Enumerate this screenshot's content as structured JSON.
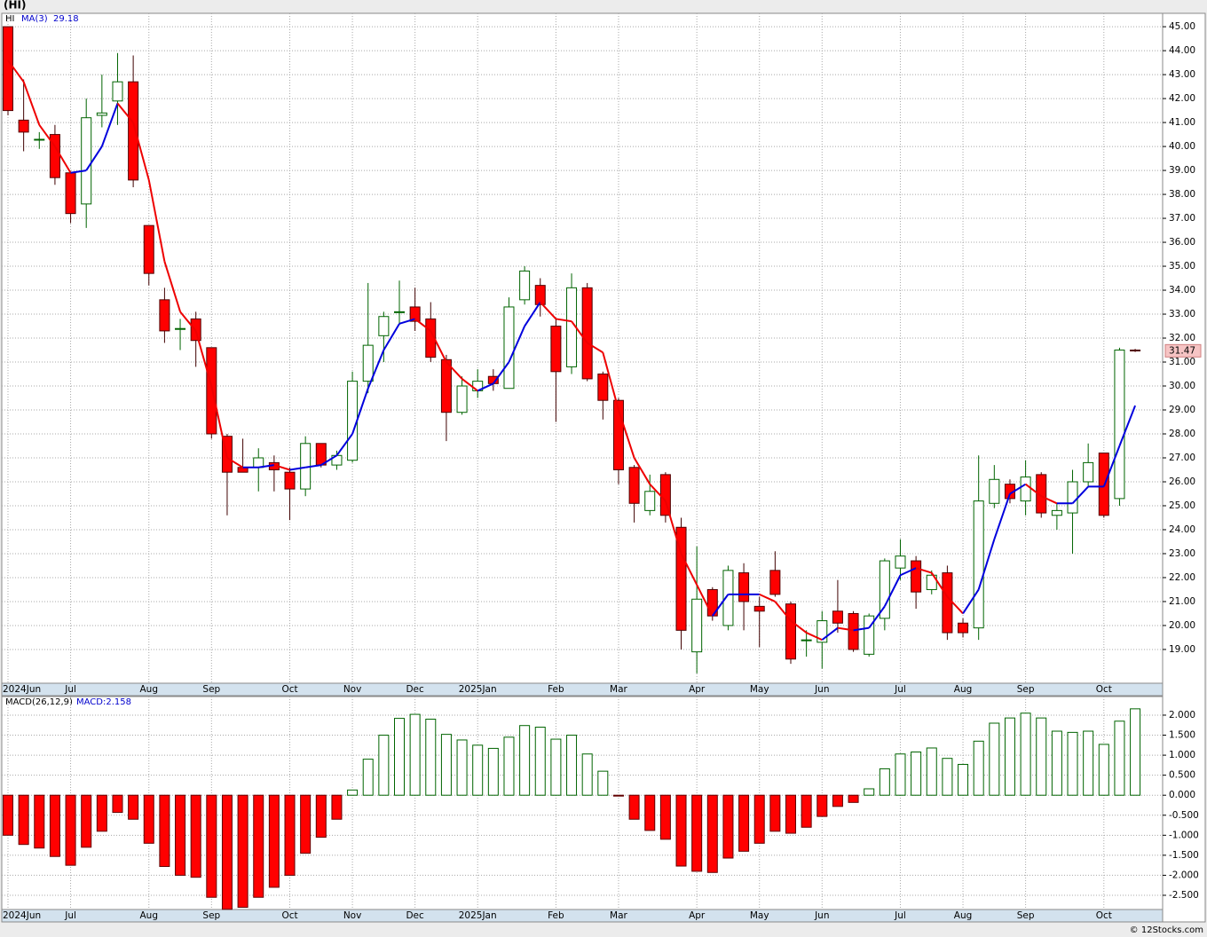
{
  "footer": "© 12Stocks.com",
  "chart_data": [
    {
      "type": "candlestick",
      "title": "(HI)",
      "name": "HI",
      "categories": [
        "2024Jun",
        null,
        null,
        null,
        "Jul",
        null,
        null,
        null,
        null,
        "Aug",
        null,
        null,
        null,
        "Sep",
        null,
        null,
        null,
        null,
        "Oct",
        null,
        null,
        null,
        "Nov",
        null,
        null,
        null,
        "Dec",
        null,
        null,
        null,
        "2025Jan",
        null,
        null,
        null,
        null,
        "Feb",
        null,
        null,
        null,
        "Mar",
        null,
        null,
        null,
        null,
        "Apr",
        null,
        null,
        null,
        "May",
        null,
        null,
        null,
        "Jun",
        null,
        null,
        null,
        null,
        "Jul",
        null,
        null,
        null,
        "Aug",
        null,
        null,
        null,
        "Sep",
        null,
        null,
        null,
        null,
        "Oct",
        null,
        null
      ],
      "open": [
        45.0,
        41.1,
        40.3,
        40.5,
        38.9,
        37.6,
        41.3,
        41.9,
        42.7,
        36.7,
        33.6,
        32.4,
        32.8,
        31.6,
        27.9,
        26.6,
        26.6,
        26.8,
        26.4,
        25.7,
        27.6,
        26.7,
        26.9,
        30.2,
        32.1,
        33.1,
        33.3,
        32.8,
        31.1,
        28.9,
        29.8,
        30.4,
        29.9,
        33.6,
        34.2,
        32.5,
        30.8,
        34.1,
        30.5,
        29.4,
        26.6,
        24.8,
        26.3,
        24.1,
        18.9,
        21.5,
        20.0,
        22.2,
        20.8,
        22.3,
        20.9,
        19.4,
        19.3,
        20.6,
        20.5,
        18.8,
        20.3,
        22.4,
        22.7,
        21.5,
        22.2,
        20.1,
        19.9,
        25.1,
        25.9,
        25.2,
        26.3,
        24.6,
        24.7,
        26.0,
        27.2,
        25.3,
        31.5
      ],
      "high": [
        45.0,
        42.8,
        40.6,
        40.9,
        38.9,
        42.0,
        43.0,
        43.9,
        43.8,
        36.7,
        34.1,
        32.8,
        33.1,
        31.6,
        28.0,
        27.8,
        27.4,
        27.1,
        26.6,
        27.9,
        27.6,
        27.3,
        30.6,
        34.3,
        33.1,
        34.4,
        34.1,
        33.5,
        31.3,
        30.4,
        30.7,
        30.7,
        33.7,
        35.0,
        34.5,
        32.8,
        34.7,
        34.3,
        30.6,
        29.5,
        26.7,
        26.3,
        26.4,
        24.5,
        23.3,
        21.6,
        22.5,
        22.6,
        21.2,
        23.1,
        21.0,
        19.8,
        20.6,
        21.9,
        20.6,
        20.5,
        22.8,
        23.6,
        22.9,
        22.3,
        22.5,
        20.3,
        27.1,
        26.7,
        26.1,
        26.9,
        26.4,
        25.1,
        26.5,
        27.6,
        27.2,
        31.6,
        31.55
      ],
      "low": [
        41.3,
        39.8,
        39.9,
        38.4,
        36.8,
        36.6,
        40.8,
        40.9,
        38.3,
        34.2,
        31.8,
        31.5,
        30.8,
        27.8,
        24.6,
        26.4,
        25.6,
        25.6,
        24.4,
        25.4,
        26.6,
        26.5,
        26.8,
        29.7,
        31.0,
        32.6,
        32.3,
        31.0,
        27.7,
        28.8,
        29.5,
        29.8,
        29.9,
        33.4,
        32.9,
        28.5,
        30.5,
        30.2,
        28.6,
        25.9,
        24.3,
        24.6,
        24.3,
        19.0,
        18.0,
        20.2,
        19.8,
        19.8,
        19.1,
        21.2,
        18.4,
        18.7,
        18.2,
        19.7,
        18.9,
        18.7,
        19.8,
        21.9,
        20.7,
        21.3,
        19.4,
        19.5,
        19.4,
        24.9,
        25.1,
        24.6,
        24.5,
        24.0,
        23.0,
        25.8,
        24.5,
        25.0,
        31.42
      ],
      "close": [
        41.5,
        40.6,
        40.3,
        38.7,
        37.2,
        41.2,
        41.4,
        42.7,
        38.6,
        34.7,
        32.3,
        32.4,
        31.9,
        28.0,
        26.4,
        26.4,
        27.0,
        26.5,
        25.7,
        27.6,
        26.7,
        27.1,
        30.2,
        31.7,
        32.9,
        33.1,
        32.7,
        31.2,
        28.9,
        30.0,
        30.2,
        30.1,
        33.3,
        34.8,
        33.4,
        30.6,
        34.1,
        30.3,
        29.4,
        26.5,
        25.1,
        25.6,
        24.6,
        19.8,
        21.1,
        20.4,
        22.3,
        21.0,
        20.6,
        21.3,
        18.6,
        19.4,
        20.2,
        20.1,
        19.0,
        20.4,
        22.7,
        22.9,
        21.4,
        22.1,
        19.7,
        19.7,
        25.2,
        26.1,
        25.3,
        26.2,
        24.7,
        24.8,
        26.0,
        26.8,
        24.6,
        31.5,
        31.47
      ],
      "up_color": "#006400",
      "down_color": "#ff0000",
      "ma": {
        "name": "MA(3)",
        "rising_color": "#0000dd",
        "falling_color": "#ee0000",
        "values": [
          43.6,
          42.7,
          40.9,
          40.0,
          38.9,
          39.0,
          40.0,
          41.8,
          41.0,
          38.6,
          35.2,
          33.1,
          32.3,
          30.0,
          27.0,
          26.6,
          26.6,
          26.7,
          26.5,
          26.6,
          26.7,
          27.1,
          28.0,
          29.9,
          31.5,
          32.6,
          32.8,
          32.3,
          31.0,
          30.3,
          29.8,
          30.1,
          31.0,
          32.5,
          33.5,
          32.8,
          32.7,
          31.8,
          31.4,
          29.0,
          27.0,
          25.9,
          25.2,
          23.0,
          21.7,
          20.4,
          21.3,
          21.3,
          21.3,
          21.0,
          20.2,
          19.7,
          19.4,
          19.9,
          19.8,
          19.9,
          20.8,
          22.1,
          22.4,
          22.2,
          21.2,
          20.5,
          21.5,
          23.6,
          25.5,
          25.9,
          25.4,
          25.1,
          25.1,
          25.8,
          25.8,
          27.5,
          29.18
        ]
      },
      "ylim": [
        17.59,
        45.56
      ],
      "yticks": [
        {
          "value": 19,
          "label": "19.00"
        },
        {
          "value": 20,
          "label": "20.00"
        },
        {
          "value": 21,
          "label": "21.00"
        },
        {
          "value": 22,
          "label": "22.00"
        },
        {
          "value": 23,
          "label": "23.00"
        },
        {
          "value": 24,
          "label": "24.00"
        },
        {
          "value": 25,
          "label": "25.00"
        },
        {
          "value": 26,
          "label": "26.00"
        },
        {
          "value": 27,
          "label": "27.00"
        },
        {
          "value": 28,
          "label": "28.00"
        },
        {
          "value": 29,
          "label": "29.00"
        },
        {
          "value": 30,
          "label": "30.00"
        },
        {
          "value": 31,
          "label": "31.00"
        },
        {
          "value": 32,
          "label": "32.00"
        },
        {
          "value": 33,
          "label": "33.00"
        },
        {
          "value": 34,
          "label": "34.00"
        },
        {
          "value": 35,
          "label": "35.00"
        },
        {
          "value": 36,
          "label": "36.00"
        },
        {
          "value": 37,
          "label": "37.00"
        },
        {
          "value": 38,
          "label": "38.00"
        },
        {
          "value": 39,
          "label": "39.00"
        },
        {
          "value": 40,
          "label": "40.00"
        },
        {
          "value": 41,
          "label": "41.00"
        },
        {
          "value": 42,
          "label": "42.00"
        },
        {
          "value": 43,
          "label": "43.00"
        },
        {
          "value": 44,
          "label": "44.00"
        },
        {
          "value": 45,
          "label": "45.00"
        }
      ],
      "grid": true
    },
    {
      "type": "bar",
      "title": "MACD(26,12,9)",
      "series": [
        {
          "name": "MACD",
          "legend_label": "MACD:2.158",
          "positive_color": "#006400",
          "negative_color": "#ff0000",
          "values": [
            -1.0,
            -1.23,
            -1.32,
            -1.53,
            -1.75,
            -1.3,
            -0.9,
            -0.43,
            -0.6,
            -1.2,
            -1.78,
            -2.0,
            -2.05,
            -2.55,
            -2.85,
            -2.8,
            -2.55,
            -2.3,
            -2.0,
            -1.45,
            -1.05,
            -0.6,
            0.13,
            0.9,
            1.5,
            1.92,
            2.02,
            1.9,
            1.52,
            1.38,
            1.25,
            1.17,
            1.45,
            1.74,
            1.7,
            1.4,
            1.5,
            1.03,
            0.6,
            -0.01,
            -0.6,
            -0.88,
            -1.1,
            -1.77,
            -1.9,
            -1.93,
            -1.57,
            -1.4,
            -1.2,
            -0.9,
            -0.95,
            -0.8,
            -0.53,
            -0.28,
            -0.18,
            0.16,
            0.66,
            1.03,
            1.08,
            1.18,
            0.92,
            0.77,
            1.35,
            1.8,
            1.93,
            2.05,
            1.93,
            1.6,
            1.57,
            1.6,
            1.27,
            1.85,
            2.158
          ]
        }
      ],
      "ylim": [
        -2.855,
        2.465
      ],
      "yticks": [
        {
          "value": -2.5,
          "label": "-2.500"
        },
        {
          "value": -2,
          "label": "-2.000"
        },
        {
          "value": -1.5,
          "label": "-1.500"
        },
        {
          "value": -1,
          "label": "-1.000"
        },
        {
          "value": -0.5,
          "label": "-0.500"
        },
        {
          "value": 0,
          "label": "0.000"
        },
        {
          "value": 0.5,
          "label": "0.500"
        },
        {
          "value": 1,
          "label": "1.000"
        },
        {
          "value": 1.5,
          "label": "1.500"
        },
        {
          "value": 2,
          "label": "2.000"
        }
      ],
      "grid": true
    }
  ]
}
